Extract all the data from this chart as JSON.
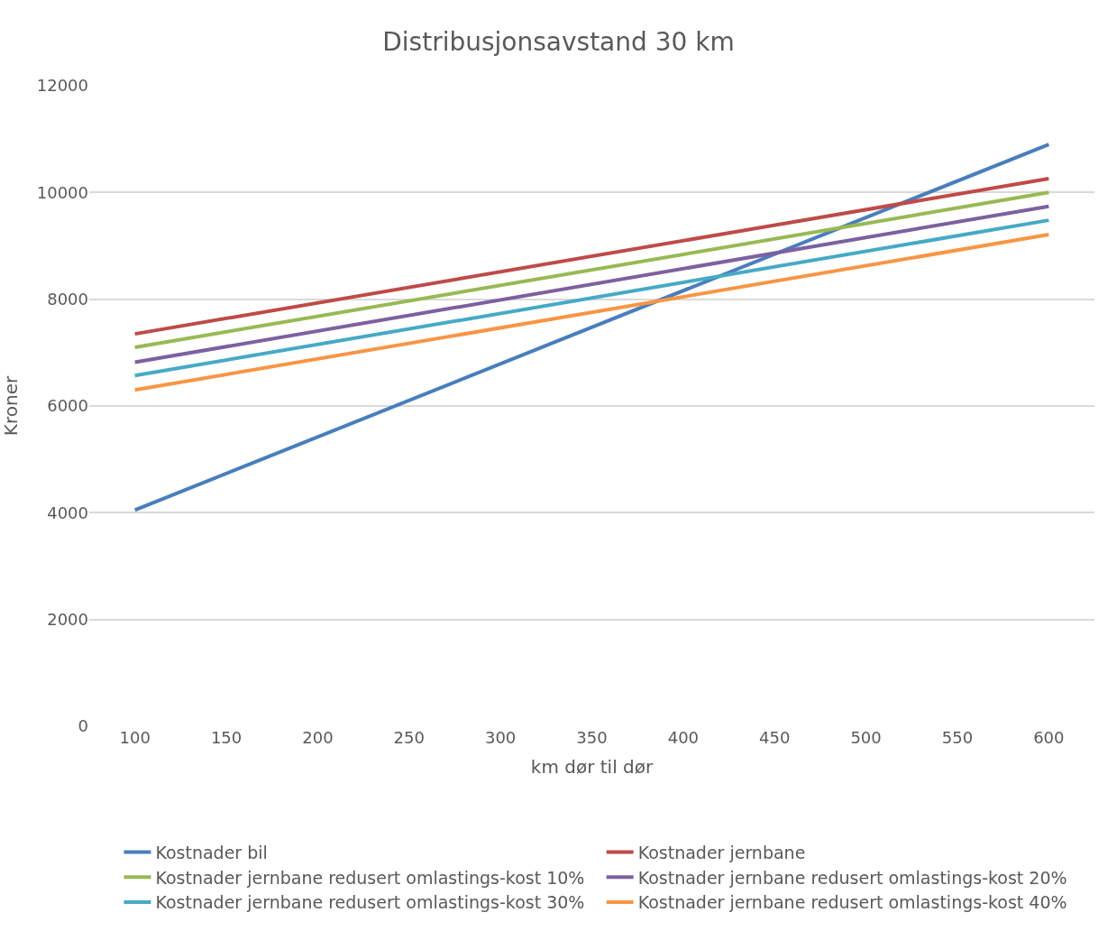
{
  "chart_data": {
    "type": "line",
    "title": "Distribusjonsavstand 30 km",
    "xlabel": "km dør til dør",
    "ylabel": "Kroner",
    "x": [
      100,
      600
    ],
    "series": [
      {
        "name": "Kostnader bil",
        "color": "#4a7ebb",
        "values": [
          4050,
          10900
        ]
      },
      {
        "name": "Kostnader jernbane",
        "color": "#be4b48",
        "values": [
          7350,
          10260
        ]
      },
      {
        "name": "Kostnader jernbane redusert omlastings-kost 10%",
        "color": "#98b954",
        "values": [
          7100,
          10000
        ]
      },
      {
        "name": "Kostnader jernbane redusert omlastings-kost 20%",
        "color": "#7d60a0",
        "values": [
          6820,
          9740
        ]
      },
      {
        "name": "Kostnader jernbane redusert omlastings-kost 30%",
        "color": "#46aac5",
        "values": [
          6570,
          9480
        ]
      },
      {
        "name": "Kostnader jernbane redusert omlastings-kost 40%",
        "color": "#f79646",
        "values": [
          6300,
          9210
        ]
      }
    ],
    "xlim": [
      75,
      625
    ],
    "xticks": [
      100,
      150,
      200,
      250,
      300,
      350,
      400,
      450,
      500,
      550,
      600
    ],
    "ylim": [
      0,
      12000
    ],
    "yticks": [
      0,
      2000,
      4000,
      6000,
      8000,
      10000,
      12000
    ],
    "grid": "y",
    "legend": "bottom",
    "marker": "none",
    "line_style": "solid"
  }
}
